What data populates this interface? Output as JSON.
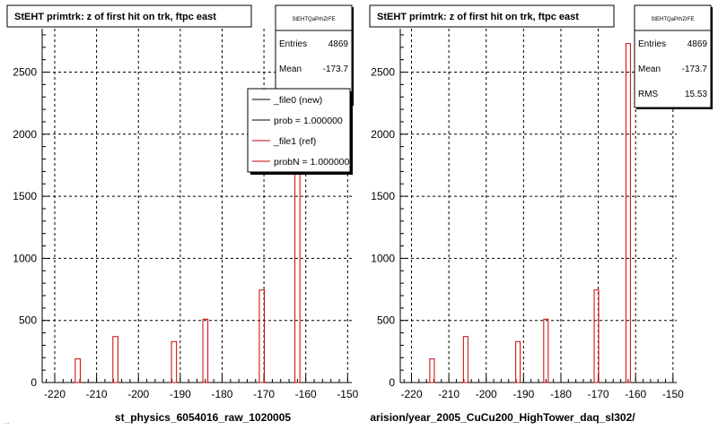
{
  "colors": {
    "background": "#ffffff",
    "axis": "#000000",
    "grid": "#000000",
    "ref_hist": "#cc0000",
    "new_hist": "#000000",
    "box_shadow": "#000000"
  },
  "footer_left": "...",
  "chart_data": [
    {
      "type": "bar",
      "title": "StEHT primtrk: z of first hit on trk, ftpc east",
      "xlabel": "st_physics_6054016_raw_1020005",
      "ylabel": "",
      "xlim": [
        -223,
        -149
      ],
      "ylim": [
        0,
        2850
      ],
      "grid": true,
      "x_ticks": [
        -220,
        -210,
        -200,
        -190,
        -180,
        -170,
        -160,
        -150
      ],
      "y_ticks": [
        0,
        500,
        1000,
        1500,
        2000,
        2500
      ],
      "series": [
        {
          "name": "_file1 (ref)",
          "x": [
            -214.5,
            -205.5,
            -191.5,
            -184.0,
            -170.5,
            -162.0
          ],
          "values": [
            190,
            370,
            330,
            510,
            745,
            2730
          ]
        }
      ],
      "stats": {
        "title": "StEHTQaPrhZrFE",
        "entries_label": "Entries",
        "entries": "4869",
        "mean_label": "Mean",
        "mean": "-173.7",
        "rms_label": "RMS",
        "rms": "15.53"
      },
      "legend": {
        "placement": "top-right",
        "items": [
          {
            "label": "_file0 (new)",
            "color": "#000000"
          },
          {
            "label": "prob = 1.000000",
            "color": "#000000"
          },
          {
            "label": "_file1 (ref)",
            "color": "#cc0000"
          },
          {
            "label": "probN = 1.000000",
            "color": "#cc0000"
          }
        ]
      }
    },
    {
      "type": "bar",
      "title": "StEHT primtrk: z of first hit on trk, ftpc east",
      "xlabel": "arision/year_2005_CuCu200_HighTower_daq_sl302/",
      "ylabel": "",
      "xlim": [
        -223,
        -149
      ],
      "ylim": [
        0,
        2850
      ],
      "grid": true,
      "x_ticks": [
        -220,
        -210,
        -200,
        -190,
        -180,
        -170,
        -160,
        -150
      ],
      "y_ticks": [
        0,
        500,
        1000,
        1500,
        2000,
        2500
      ],
      "series": [
        {
          "name": "",
          "x": [
            -214.5,
            -205.5,
            -191.5,
            -184.0,
            -170.5,
            -162.0
          ],
          "values": [
            190,
            370,
            330,
            510,
            745,
            2730
          ]
        }
      ],
      "stats": {
        "title": "StEHTQaPrhZrFE",
        "entries_label": "Entries",
        "entries": "4869",
        "mean_label": "Mean",
        "mean": "-173.7",
        "rms_label": "RMS",
        "rms": "15.53"
      }
    }
  ]
}
